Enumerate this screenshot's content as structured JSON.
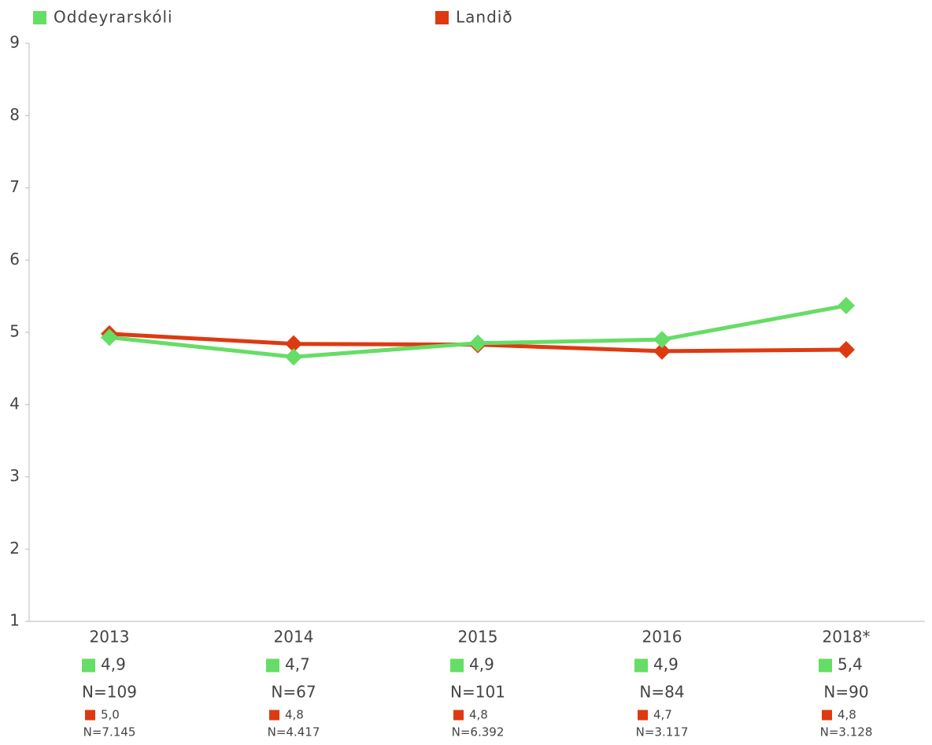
{
  "chart_data": {
    "type": "line",
    "categories": [
      "2013",
      "2014",
      "2015",
      "2016",
      "2018*"
    ],
    "ylim": [
      1,
      9
    ],
    "yticks": [
      1,
      2,
      3,
      4,
      5,
      6,
      7,
      8,
      9
    ],
    "grid": false,
    "legend": "top",
    "series": [
      {
        "name": "Oddeyrarskóli",
        "color": "#66dd66",
        "values": [
          4.93,
          4.66,
          4.85,
          4.9,
          5.37
        ],
        "value_labels": [
          "4,9",
          "4,7",
          "4,9",
          "4,9",
          "5,4"
        ],
        "n_labels": [
          "N=109",
          "N=67",
          "N=101",
          "N=84",
          "N=90"
        ]
      },
      {
        "name": "Landið",
        "color": "#dd3a11",
        "values": [
          4.98,
          4.84,
          4.83,
          4.74,
          4.76
        ],
        "value_labels": [
          "5,0",
          "4,8",
          "4,8",
          "4,7",
          "4,8"
        ],
        "n_labels": [
          "N=7.145",
          "N=4.417",
          "N=6.392",
          "N=3.117",
          "N=3.128"
        ]
      }
    ]
  }
}
